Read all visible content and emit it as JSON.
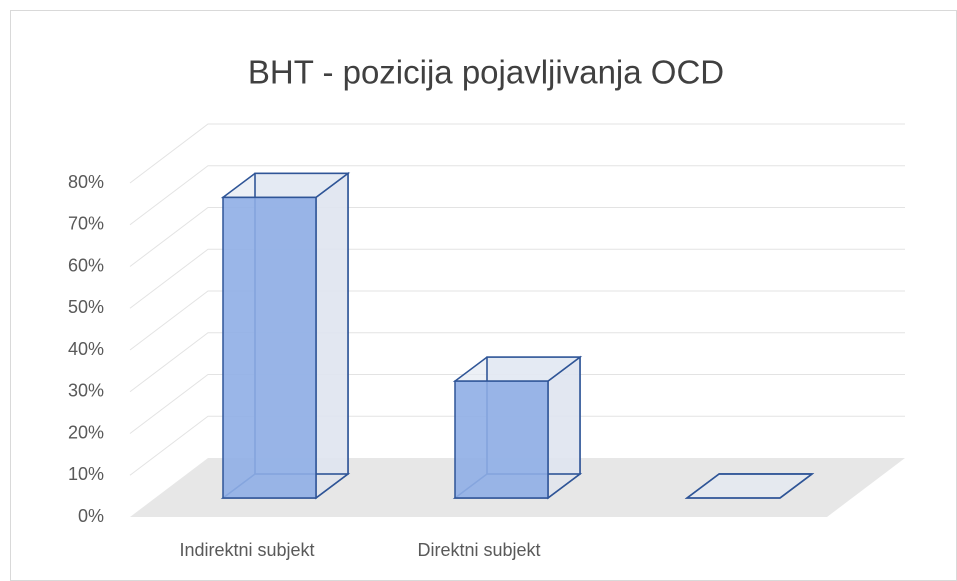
{
  "chart_data": {
    "type": "bar3d",
    "title": "BHT - pozicija pojavljivanja OCD",
    "categories": [
      "Indirektni subjekt",
      "Direktni subjekt",
      null
    ],
    "values": [
      72,
      28,
      0
    ],
    "color": "#8faee6",
    "ylim": [
      0,
      80
    ],
    "yticks": [
      {
        "value": 0,
        "label": "0%"
      },
      {
        "value": 10,
        "label": "10%"
      },
      {
        "value": 20,
        "label": "20%"
      },
      {
        "value": 30,
        "label": "30%"
      },
      {
        "value": 40,
        "label": "40%"
      },
      {
        "value": 50,
        "label": "50%"
      },
      {
        "value": 60,
        "label": "60%"
      },
      {
        "value": 70,
        "label": "70%"
      },
      {
        "value": 80,
        "label": "80%"
      }
    ],
    "grid": true
  }
}
